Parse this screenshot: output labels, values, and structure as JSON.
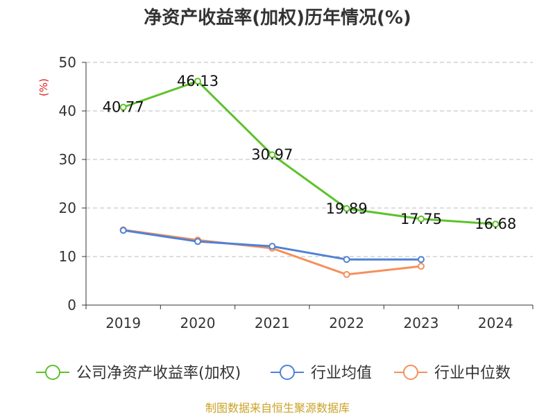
{
  "chart_data": {
    "type": "line",
    "title": "净资产收益率(加权)历年情况(%)",
    "ylabel": "(%)",
    "categories": [
      "2019",
      "2020",
      "2021",
      "2022",
      "2023",
      "2024"
    ],
    "ylim": [
      0,
      50
    ],
    "yticks": [
      0,
      10,
      20,
      30,
      40,
      50
    ],
    "grid": true,
    "legend_position": "bottom",
    "series": [
      {
        "name": "公司净资产收益率(加权)",
        "color": "#5cc22b",
        "values": [
          40.77,
          46.13,
          30.97,
          19.89,
          17.75,
          16.68
        ],
        "labels": [
          "40.77",
          "46.13",
          "30.97",
          "19.89",
          "17.75",
          "16.68"
        ]
      },
      {
        "name": "行业均值",
        "color": "#4f81d6",
        "values": [
          15.4,
          13.1,
          12.1,
          9.4,
          9.4,
          null
        ]
      },
      {
        "name": "行业中位数",
        "color": "#f5905a",
        "values": [
          15.5,
          13.4,
          11.7,
          6.3,
          8.0,
          null
        ]
      }
    ],
    "source": "制图数据来自恒生聚源数据库"
  },
  "colors": {
    "title": "#333333",
    "axis": "#333333",
    "grid": "#bbbbbb",
    "ylabel": "#e02020",
    "source": "#c9a227"
  }
}
